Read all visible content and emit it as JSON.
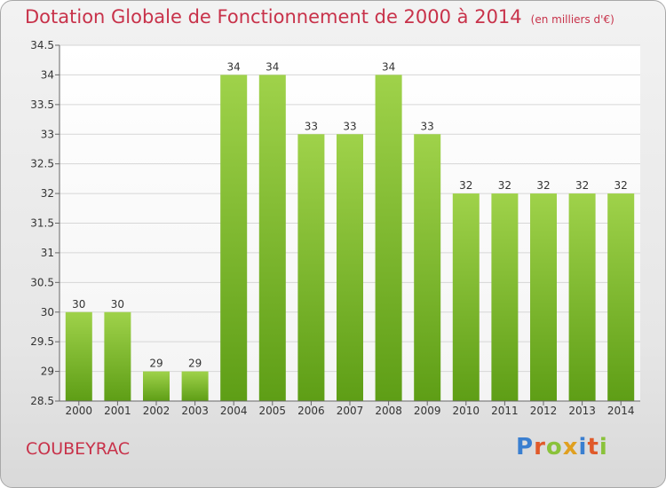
{
  "header": {
    "title": "Dotation Globale de Fonctionnement de 2000 à 2014",
    "subtitle": "(en milliers d'€)"
  },
  "commune": "COUBEYRAC",
  "logo": {
    "text": "Proxiti",
    "colors": [
      "#3a7fd0",
      "#e05a2a",
      "#8ac23a",
      "#e0a020",
      "#3a7fd0",
      "#e05a2a",
      "#8ac23a"
    ]
  },
  "colors": {
    "bar_top": "#9fd24a",
    "bar_bottom": "#5e9e16",
    "grid": "#d6d6d6",
    "axis": "#666666",
    "text": "#333333",
    "title": "#c8324a"
  },
  "chart_data": {
    "type": "bar",
    "categories": [
      "2000",
      "2001",
      "2002",
      "2003",
      "2004",
      "2005",
      "2006",
      "2007",
      "2008",
      "2009",
      "2010",
      "2011",
      "2012",
      "2013",
      "2014"
    ],
    "values": [
      30,
      30,
      29,
      29,
      34,
      34,
      33,
      33,
      34,
      33,
      32,
      32,
      32,
      32,
      32
    ],
    "labels": [
      "30",
      "30",
      "29",
      "29",
      "34",
      "34",
      "33",
      "33",
      "34",
      "33",
      "32",
      "32",
      "32",
      "32",
      "32"
    ],
    "ylim": [
      28.5,
      34.5
    ],
    "yticks": [
      28.5,
      29,
      29.5,
      30,
      30.5,
      31,
      31.5,
      32,
      32.5,
      33,
      33.5,
      34,
      34.5
    ],
    "ytick_labels": [
      "28.5",
      "29",
      "29.5",
      "30",
      "30.5",
      "31",
      "31.5",
      "32",
      "32.5",
      "33",
      "33.5",
      "34",
      "34.5"
    ],
    "grid": true,
    "title": "Dotation Globale de Fonctionnement de 2000 à 2014",
    "xlabel": "",
    "ylabel": ""
  }
}
